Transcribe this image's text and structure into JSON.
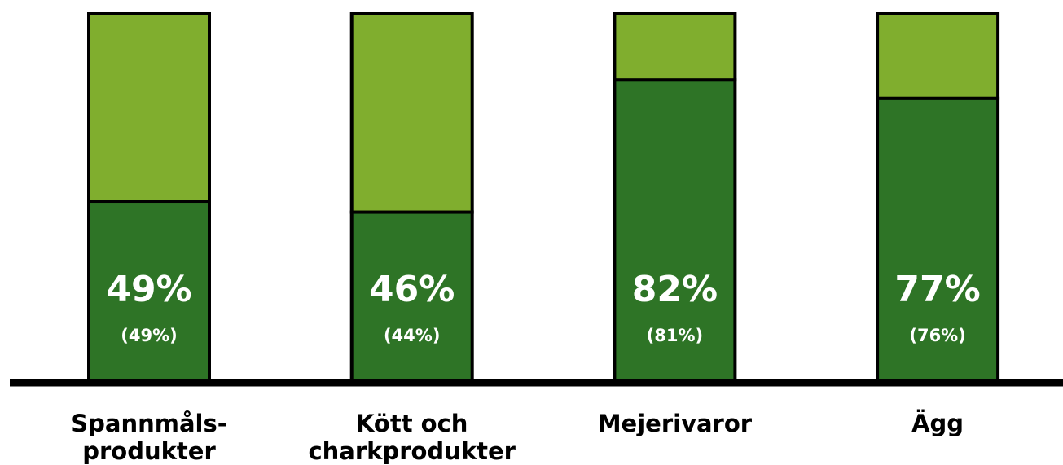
{
  "chart_data": {
    "type": "stacked_bar",
    "categories": [
      [
        "Spannmåls-",
        "produkter"
      ],
      [
        "Kött och",
        "charkprodukter"
      ],
      [
        "Mejerivaror"
      ],
      [
        "Ägg"
      ]
    ],
    "series": [
      {
        "color": "#2e7426",
        "values": [
          49,
          46,
          82,
          77
        ],
        "value_labels": [
          "49%",
          "46%",
          "82%",
          "77%"
        ]
      },
      {
        "color": "#80ae2e",
        "values": [
          51,
          54,
          18,
          23
        ]
      }
    ],
    "previous": {
      "values": [
        49,
        44,
        81,
        76
      ],
      "value_labels": [
        "(49%)",
        "(44%)",
        "(81%)",
        "(76%)"
      ]
    },
    "ylim": [
      0,
      100
    ]
  }
}
